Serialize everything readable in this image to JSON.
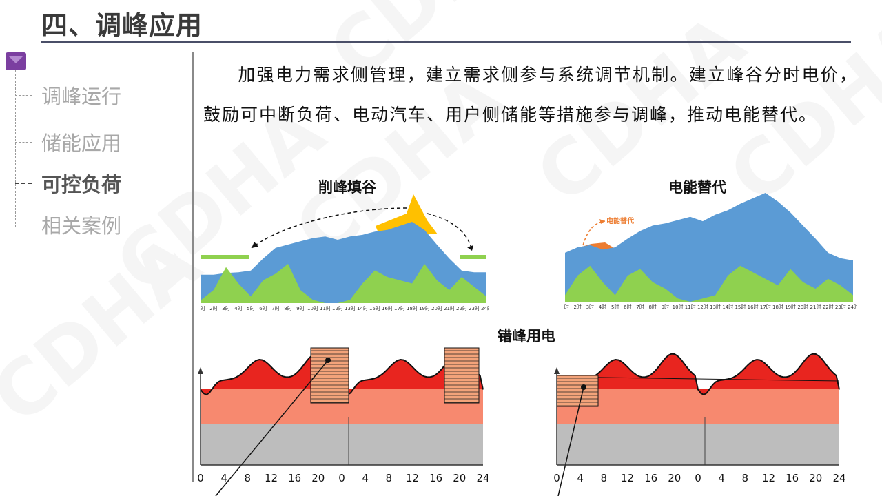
{
  "header": {
    "title": "四、调峰应用"
  },
  "watermark": {
    "text": "CDHA"
  },
  "nav": {
    "items": [
      {
        "label": "调峰运行",
        "active": false
      },
      {
        "label": "储能应用",
        "active": false
      },
      {
        "label": "可控负荷",
        "active": true
      },
      {
        "label": "相关案例",
        "active": false
      }
    ]
  },
  "content": {
    "paragraph": "加强电力需求侧管理，建立需求侧参与系统调节机制。建立峰谷分时电价，鼓励可中断负荷、电动汽车、用户侧储能等措施参与调峰，推动电能替代。"
  },
  "colors": {
    "blue": "#5b9bd5",
    "green": "#8fd14f",
    "gold": "#ffc000",
    "orange": "#ed7d31",
    "red": "#e8251f",
    "salmon": "#f7896f",
    "gray": "#bdbdbd",
    "nav_marker": "#7b3fa0"
  },
  "chart_data": [
    {
      "type": "area",
      "title": "削峰填谷",
      "x": [
        "1时",
        "2时",
        "3时",
        "4时",
        "5时",
        "6时",
        "7时",
        "8时",
        "9时",
        "10时",
        "11时",
        "12时",
        "13时",
        "14时",
        "15时",
        "16时",
        "17时",
        "18时",
        "19时",
        "20时",
        "21时",
        "22时",
        "23时",
        "24时"
      ],
      "series": [
        {
          "values": [
            0.35,
            0.35,
            0.37,
            0.38,
            0.4,
            0.55,
            0.68,
            0.72,
            0.76,
            0.8,
            0.82,
            0.78,
            0.82,
            0.84,
            0.88,
            0.9,
            0.95,
            1.0,
            0.9,
            0.72,
            0.55,
            0.4,
            0.38,
            0.38
          ]
        },
        {
          "values": [
            0.05,
            0.2,
            0.55,
            0.3,
            0.1,
            0.35,
            0.45,
            0.6,
            0.2,
            0.05,
            0.0,
            0.0,
            0.05,
            0.3,
            0.5,
            0.4,
            0.35,
            0.3,
            0.6,
            0.35,
            0.2,
            0.4,
            0.25,
            0.1
          ]
        }
      ],
      "annotation": "arrows move peak load into valley"
    },
    {
      "type": "area",
      "title": "电能替代",
      "annotation_label": "电能替代",
      "x": [
        "1时",
        "2时",
        "3时",
        "4时",
        "5时",
        "6时",
        "7时",
        "8时",
        "9时",
        "10时",
        "11时",
        "12时",
        "13时",
        "14时",
        "15时",
        "16时",
        "17时",
        "18时",
        "19时",
        "20时",
        "21时",
        "22时",
        "23时",
        "24时"
      ],
      "series": [
        {
          "values": [
            0.45,
            0.5,
            0.52,
            0.48,
            0.5,
            0.58,
            0.65,
            0.7,
            0.72,
            0.75,
            0.78,
            0.74,
            0.8,
            0.84,
            0.9,
            0.95,
            1.0,
            0.92,
            0.82,
            0.7,
            0.58,
            0.45,
            0.4,
            0.38
          ]
        },
        {
          "values": [
            0.1,
            0.4,
            0.55,
            0.3,
            0.1,
            0.4,
            0.5,
            0.3,
            0.2,
            0.05,
            0.0,
            0.05,
            0.1,
            0.4,
            0.55,
            0.45,
            0.35,
            0.25,
            0.5,
            0.3,
            0.2,
            0.35,
            0.25,
            0.1
          ]
        }
      ]
    },
    {
      "type": "area",
      "title": "错峰用电",
      "x_ticks": [
        "0",
        "4",
        "8",
        "12",
        "16",
        "20",
        "0",
        "4",
        "8",
        "12",
        "16",
        "20",
        "24"
      ]
    }
  ]
}
